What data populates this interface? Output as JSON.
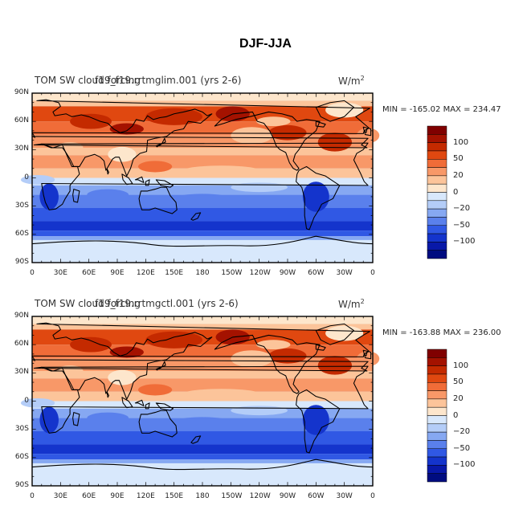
{
  "main_title": "DJF-JJA",
  "panels": [
    {
      "title_left": "TOM SW cloud forcing",
      "title_center": "f19_f19.rrtmglim.001 (yrs 2-6)",
      "units": "W/m",
      "units_exp": "2",
      "min_max": "MIN = -165.02 MAX = 234.47",
      "min": -165.02,
      "max": 234.47
    },
    {
      "title_left": "TOM SW cloud forcing",
      "title_center": "f19_f19.rrtmgctl.001 (yrs 2-6)",
      "units": "W/m",
      "units_exp": "2",
      "min_max": "MIN = -163.88 MAX = 236.00",
      "min": -163.88,
      "max": 236.0
    }
  ],
  "lat_labels": [
    "90N",
    "60N",
    "30N",
    "0",
    "30S",
    "60S",
    "90S"
  ],
  "lon_labels": [
    "0",
    "30E",
    "60E",
    "90E",
    "120E",
    "150E",
    "180",
    "150W",
    "120W",
    "90W",
    "60W",
    "30W",
    "0"
  ],
  "colorbar": {
    "labels": [
      "100",
      "50",
      "20",
      "0",
      "−20",
      "−50",
      "−100"
    ],
    "colors": [
      "#800000",
      "#a41200",
      "#c42a00",
      "#e04810",
      "#f06c38",
      "#f89868",
      "#fcc49a",
      "#fde6cc",
      "#d8e8fc",
      "#b4cdf8",
      "#86a8f2",
      "#5a80ec",
      "#3058e4",
      "#1434cc",
      "#0818a8",
      "#000c80"
    ]
  }
}
